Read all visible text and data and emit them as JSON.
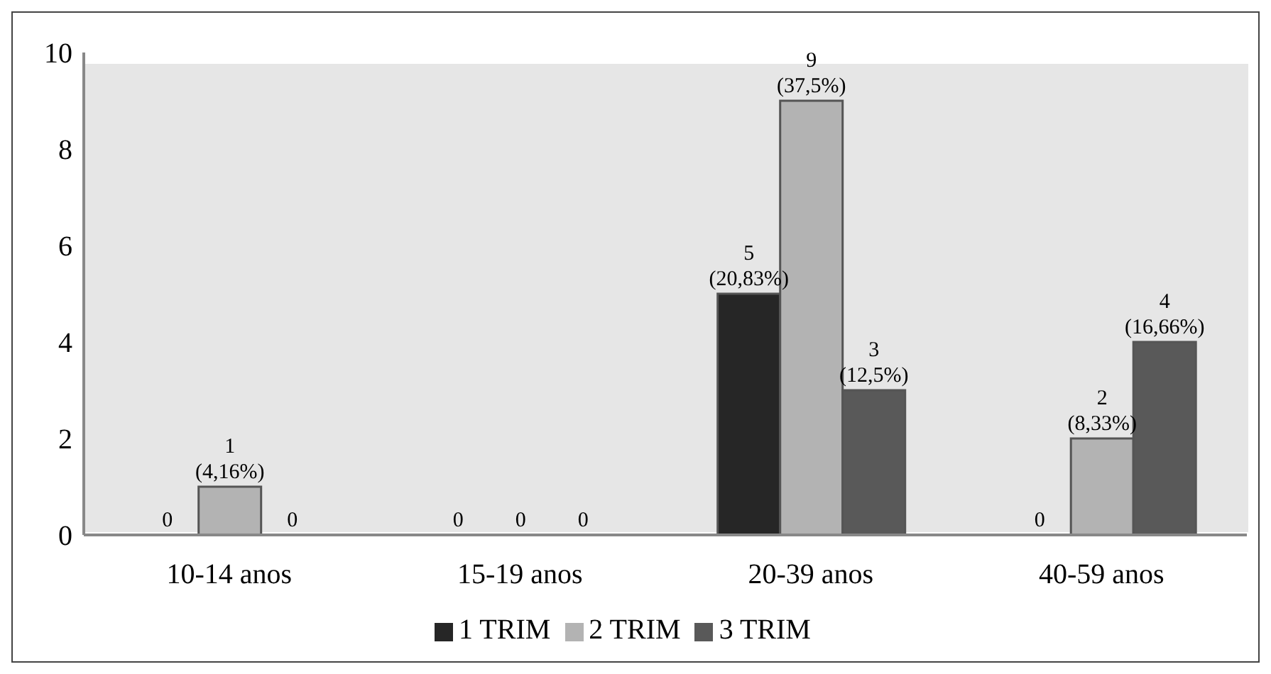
{
  "chart_data": {
    "type": "bar",
    "categories": [
      "10-14 anos",
      "15-19 anos",
      "20-39 anos",
      "40-59 anos"
    ],
    "series": [
      {
        "name": "1 TRIM",
        "color": "#262626",
        "values": [
          0,
          0,
          5,
          0
        ],
        "value_labels": [
          "0",
          "0",
          "5 (20,83%)",
          "0"
        ]
      },
      {
        "name": "2 TRIM",
        "color": "#b3b3b3",
        "values": [
          1,
          0,
          9,
          2
        ],
        "value_labels": [
          "1 (4,16%)",
          "0",
          "9 (37,5%)",
          "2 (8,33%)"
        ]
      },
      {
        "name": "3 TRIM",
        "color": "#595959",
        "values": [
          0,
          0,
          3,
          4
        ],
        "value_labels": [
          "0",
          "0",
          "3 (12,5%)",
          "4 (16,66%)"
        ]
      }
    ],
    "ylim": [
      0,
      10
    ],
    "yticks": [
      0,
      2,
      4,
      6,
      8,
      10
    ],
    "grid": false,
    "legend": "bottom"
  }
}
